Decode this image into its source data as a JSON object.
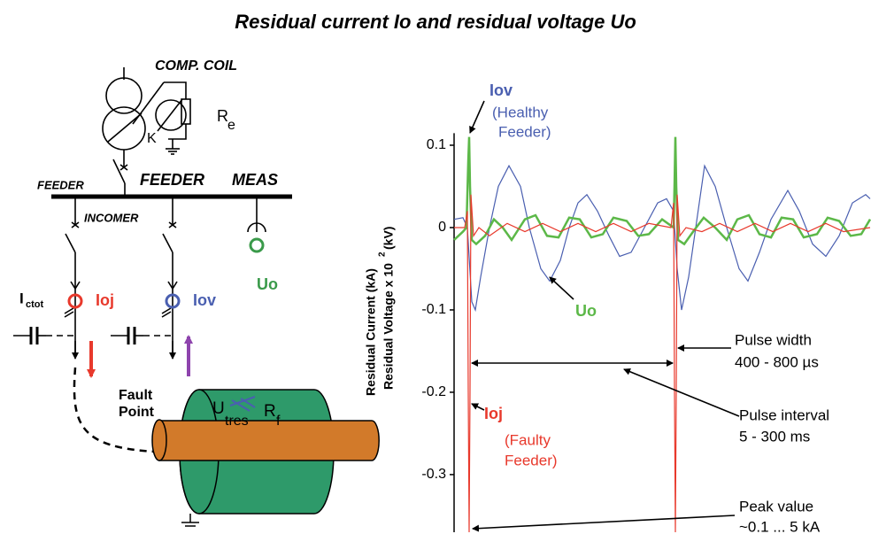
{
  "title": "Residual current Io and residual voltage Uo",
  "diagram": {
    "comp_coil": "COMP. COIL",
    "re_main": "R",
    "re_sub": "e",
    "k": "K",
    "feeder_left": "FEEDER",
    "feeder": "FEEDER",
    "meas": "MEAS",
    "incomer": "INCOMER",
    "ictot_main": "I",
    "ictot_sub": "ctot",
    "ioj": "Ioj",
    "iov": "Iov",
    "uo": "Uo",
    "fault_line1": "Fault",
    "fault_line2": "Point",
    "utres_main": "U",
    "utres_sub": "tres",
    "rf_main": "R",
    "rf_sub": "f"
  },
  "chart_data": {
    "type": "line",
    "y_label": {
      "line1": "Residual Current (kA)",
      "line2": "Residual Voltage x 10",
      "line2_sup": "2",
      "line2_unit": "(kV)"
    },
    "xlim": [
      0,
      470
    ],
    "ylim": [
      -0.37,
      0.12
    ],
    "yticks": [
      0.1,
      0,
      -0.1,
      -0.2,
      -0.3
    ],
    "series": [
      {
        "name": "Iov",
        "color": "#4a5fb0",
        "x": [
          0,
          10,
          15,
          20,
          24,
          30,
          40,
          50,
          62,
          75,
          85,
          98,
          108,
          120,
          130,
          140,
          150,
          162,
          175,
          187,
          200,
          215,
          230,
          240,
          248,
          252,
          257,
          265,
          273,
          283,
          295,
          308,
          322,
          332,
          345,
          358,
          377,
          390,
          405,
          420,
          435,
          450,
          465,
          470
        ],
        "values": [
          0.01,
          0.012,
          0.0,
          -0.09,
          -0.1,
          -0.06,
          0.0,
          0.05,
          0.075,
          0.05,
          0.0,
          -0.05,
          -0.065,
          -0.04,
          0.0,
          0.03,
          0.04,
          0.02,
          -0.01,
          -0.035,
          -0.03,
          0.0,
          0.03,
          0.035,
          0.02,
          -0.05,
          -0.1,
          -0.06,
          0.0,
          0.075,
          0.05,
          0.0,
          -0.05,
          -0.065,
          -0.03,
          0.01,
          0.045,
          0.02,
          -0.02,
          -0.035,
          -0.01,
          0.03,
          0.04,
          0.035
        ]
      },
      {
        "name": "Uo",
        "color": "#5cb848",
        "x": [
          0,
          10,
          14,
          16,
          17,
          18,
          20,
          25,
          35,
          45,
          55,
          65,
          80,
          92,
          105,
          118,
          130,
          142,
          155,
          168,
          180,
          195,
          208,
          220,
          235,
          248,
          249,
          250,
          251,
          253,
          260,
          270,
          282,
          295,
          308,
          320,
          333,
          345,
          358,
          370,
          383,
          395,
          410,
          422,
          435,
          448,
          460,
          470
        ],
        "values": [
          -0.015,
          -0.005,
          0.0,
          0.08,
          0.11,
          0.05,
          -0.015,
          -0.02,
          -0.01,
          0.01,
          0.0,
          -0.015,
          0.01,
          0.015,
          -0.01,
          -0.012,
          0.012,
          0.01,
          -0.012,
          -0.008,
          0.012,
          0.008,
          -0.01,
          -0.008,
          0.01,
          0.0,
          0.05,
          0.11,
          0.05,
          -0.015,
          -0.02,
          -0.005,
          0.012,
          0.0,
          -0.015,
          0.01,
          0.015,
          -0.008,
          -0.012,
          0.012,
          0.01,
          -0.012,
          -0.008,
          0.012,
          0.008,
          -0.01,
          -0.008,
          0.01
        ]
      },
      {
        "name": "Ioj",
        "color": "#e8392c",
        "x": [
          0,
          12,
          15,
          16,
          17,
          18,
          19,
          22,
          28,
          40,
          60,
          80,
          100,
          120,
          140,
          160,
          180,
          200,
          220,
          245,
          248,
          249,
          250,
          251,
          252,
          255,
          262,
          280,
          300,
          320,
          340,
          360,
          380,
          400,
          420,
          440,
          470
        ],
        "values": [
          0.0,
          0.0,
          0.02,
          -0.2,
          -0.37,
          -0.2,
          0.04,
          -0.01,
          0.0,
          -0.01,
          0.005,
          -0.005,
          0.005,
          -0.005,
          0.005,
          -0.005,
          0.005,
          -0.005,
          0.005,
          0.0,
          0.03,
          -0.2,
          -0.37,
          -0.2,
          0.04,
          -0.01,
          0.0,
          -0.005,
          0.005,
          -0.005,
          0.005,
          -0.005,
          0.005,
          -0.005,
          0.005,
          -0.005,
          0.0
        ]
      }
    ],
    "annotations": {
      "iov_line1": "(Healthy",
      "iov_line2": "Feeder)",
      "ioj_line1": "(Faulty",
      "ioj_line2": "Feeder)",
      "pulse_width": "Pulse width",
      "pulse_width_value": "400 - 800 µs",
      "pulse_interval": "Pulse interval",
      "pulse_interval_value": "5 - 300 ms",
      "peak_value": "Peak value",
      "peak_value_value": "~0.1 ... 5 kA"
    }
  }
}
